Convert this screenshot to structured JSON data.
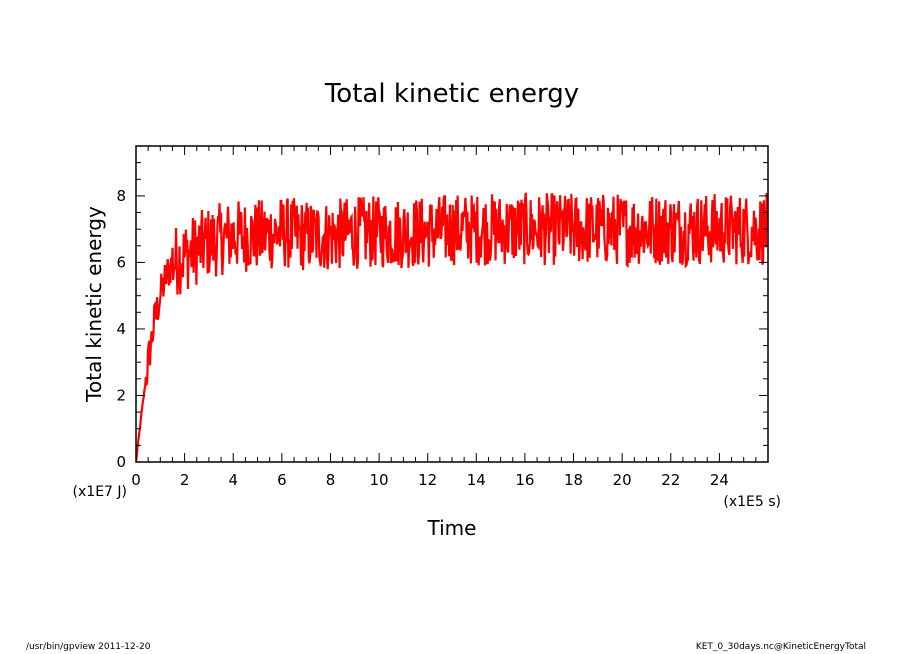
{
  "chart_data": {
    "type": "line",
    "title": "Total kinetic energy",
    "xlabel": "Time",
    "ylabel": "Total kinetic energy",
    "x_unit": "(x1E5 s)",
    "y_unit": "(x1E7 J)",
    "xlim": [
      0,
      26
    ],
    "ylim": [
      0,
      9.5
    ],
    "x_ticks": [
      0,
      2,
      4,
      6,
      8,
      10,
      12,
      14,
      16,
      18,
      20,
      22,
      24
    ],
    "y_ticks": [
      0,
      2,
      4,
      6,
      8
    ],
    "series_color": "#ff0000",
    "grid": false,
    "series": [
      {
        "x": [
          0,
          0.25,
          0.5,
          0.75,
          1.0,
          1.25,
          1.5,
          2,
          2.5,
          3,
          3.5,
          4,
          5,
          6,
          7,
          8,
          9,
          10,
          11,
          12,
          13,
          14,
          15,
          16,
          17,
          18,
          19,
          20,
          21,
          22,
          23,
          24,
          25,
          26
        ],
        "y": [
          0,
          1.6,
          3.0,
          4.2,
          5.0,
          5.6,
          6.0,
          6.2,
          6.4,
          6.6,
          6.7,
          6.8,
          6.8,
          6.9,
          6.8,
          6.8,
          6.9,
          6.9,
          6.9,
          6.9,
          7.0,
          7.0,
          7.0,
          7.0,
          7.0,
          7.0,
          7.0,
          7.0,
          7.0,
          7.0,
          7.0,
          7.0,
          7.0,
          7.0
        ]
      }
    ]
  },
  "footer": {
    "left": "/usr/bin/gpview   2011-12-20",
    "right": "KET_0_30days.nc@KineticEnergyTotal"
  }
}
